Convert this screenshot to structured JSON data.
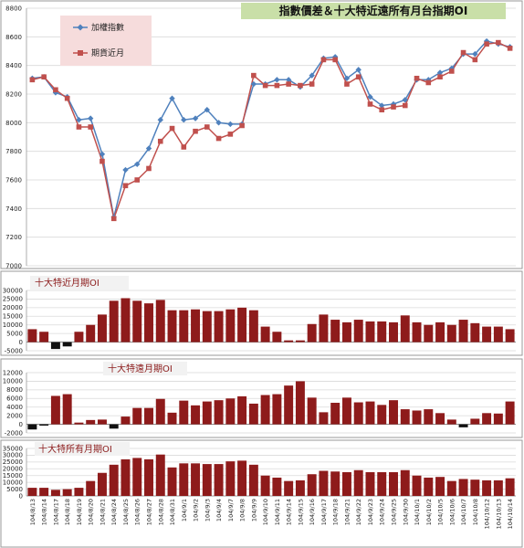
{
  "chart_data": [
    {
      "type": "line",
      "title": "指數價差＆十大特近遠所有月台指期OI",
      "legend_position": "top-left",
      "ylim": [
        7000,
        8800
      ],
      "yticks": [
        7000,
        7200,
        7400,
        7600,
        7800,
        8000,
        8200,
        8400,
        8600,
        8800
      ],
      "grid": true,
      "series": [
        {
          "name": "加權指數",
          "color": "#4f81bd",
          "marker": "diamond",
          "values": [
            8310,
            8320,
            8210,
            8180,
            8020,
            8030,
            7780,
            7340,
            7670,
            7710,
            7820,
            8020,
            8170,
            8020,
            8030,
            8090,
            8000,
            7990,
            7990,
            8270,
            8270,
            8300,
            8300,
            8250,
            8330,
            8450,
            8460,
            8310,
            8370,
            8180,
            8120,
            8130,
            8160,
            8300,
            8300,
            8350,
            8380,
            8480,
            8480,
            8570,
            8550,
            8530
          ]
        },
        {
          "name": "期貨近月",
          "color": "#c0504d",
          "marker": "square",
          "values": [
            8300,
            8320,
            8230,
            8170,
            7970,
            7970,
            7730,
            7330,
            7560,
            7600,
            7680,
            7870,
            7960,
            7830,
            7940,
            7970,
            7890,
            7920,
            7980,
            8330,
            8260,
            8260,
            8270,
            8260,
            8270,
            8440,
            8440,
            8270,
            8320,
            8130,
            8090,
            8110,
            8120,
            8310,
            8280,
            8320,
            8360,
            8490,
            8440,
            8550,
            8560,
            8520
          ]
        }
      ]
    },
    {
      "type": "bar",
      "title": "十大特近月期OI",
      "ylim": [
        -5000,
        30000
      ],
      "yticks": [
        -5000,
        0,
        5000,
        10000,
        15000,
        20000,
        25000,
        30000
      ],
      "values": [
        7500,
        6000,
        -4000,
        -2500,
        6000,
        10000,
        16000,
        24000,
        25500,
        24000,
        22500,
        24500,
        18500,
        18500,
        19000,
        18000,
        18000,
        19000,
        20000,
        18500,
        9000,
        6000,
        1000,
        1000,
        10500,
        16000,
        13000,
        11500,
        13000,
        12000,
        12000,
        11500,
        15500,
        11500,
        10000,
        11500,
        10000,
        13000,
        11000,
        9000,
        9000,
        7500
      ]
    },
    {
      "type": "bar",
      "title": "十大特遠月期OI",
      "ylim": [
        -2000,
        12000
      ],
      "yticks": [
        -2000,
        0,
        2000,
        4000,
        6000,
        8000,
        10000,
        12000
      ],
      "values": [
        -1200,
        -300,
        6600,
        7000,
        400,
        1000,
        1100,
        -1000,
        1800,
        3800,
        3800,
        5900,
        2700,
        5500,
        4400,
        5300,
        5600,
        6000,
        6500,
        4800,
        6800,
        7000,
        9000,
        10000,
        6200,
        2800,
        5000,
        6200,
        5100,
        5300,
        4500,
        5600,
        3500,
        3200,
        3500,
        2600,
        1100,
        -700,
        1300,
        2600,
        2500,
        5300
      ]
    },
    {
      "type": "bar",
      "title": "十大特所有月期OI",
      "ylim": [
        0,
        35000
      ],
      "yticks": [
        0,
        5000,
        10000,
        15000,
        20000,
        25000,
        30000,
        35000
      ],
      "categories": [
        "104/8/13",
        "104/8/14",
        "104/8/17",
        "104/8/18",
        "104/8/19",
        "104/8/20",
        "104/8/21",
        "104/8/24",
        "104/8/25",
        "104/8/26",
        "104/8/27",
        "104/8/28",
        "104/8/31",
        "104/9/1",
        "104/9/2",
        "104/9/3",
        "104/9/4",
        "104/9/7",
        "104/9/8",
        "104/9/9",
        "104/9/10",
        "104/9/11",
        "104/9/14",
        "104/9/15",
        "104/9/16",
        "104/9/17",
        "104/9/18",
        "104/9/21",
        "104/9/22",
        "104/9/23",
        "104/9/24",
        "104/9/25",
        "104/9/30",
        "104/10/1",
        "104/10/2",
        "104/10/5",
        "104/10/6",
        "104/10/7",
        "104/10/8",
        "104/10/12",
        "104/10/13",
        "104/10/14"
      ],
      "values": [
        6000,
        6000,
        4500,
        5000,
        6000,
        11000,
        17000,
        23000,
        27000,
        28000,
        27000,
        30500,
        21000,
        24000,
        24000,
        23500,
        23500,
        25500,
        26000,
        23000,
        15000,
        13500,
        11000,
        11500,
        16000,
        18500,
        18000,
        17500,
        19000,
        17500,
        17500,
        17500,
        19000,
        15000,
        13500,
        14000,
        11000,
        12500,
        12000,
        11500,
        11500,
        13000
      ]
    }
  ]
}
